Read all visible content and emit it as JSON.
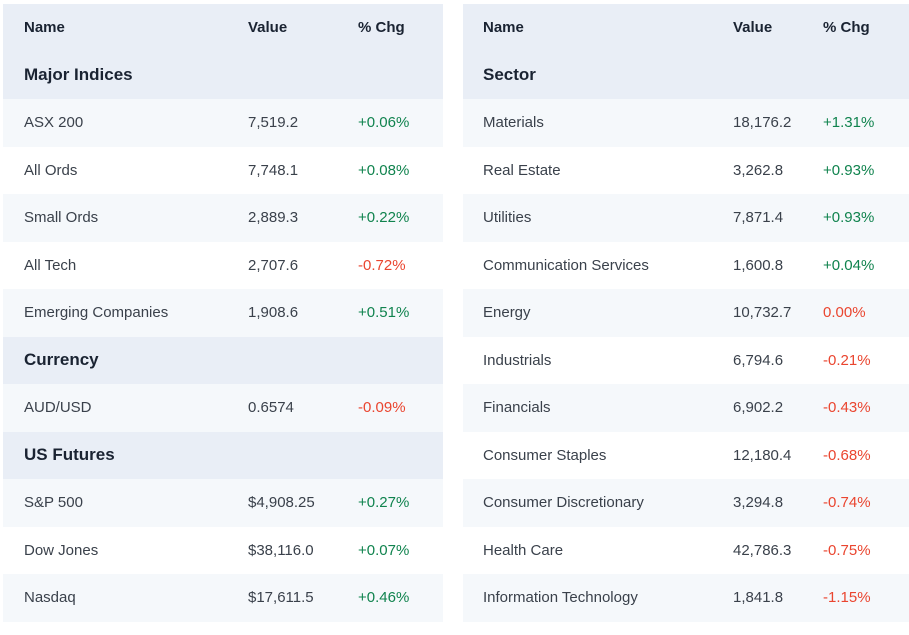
{
  "colors": {
    "positive": "#10834e",
    "negative": "#ea452f",
    "header_bg": "#e9eef6",
    "stripe_bg": "#f5f8fb"
  },
  "left_table": {
    "headers": {
      "name": "Name",
      "value": "Value",
      "chg": "% Chg"
    },
    "rows": [
      {
        "type": "section",
        "label": "Major Indices"
      },
      {
        "name": "ASX 200",
        "value": "7,519.2",
        "chg": "+0.06%",
        "trend": "up"
      },
      {
        "name": "All Ords",
        "value": "7,748.1",
        "chg": "+0.08%",
        "trend": "up"
      },
      {
        "name": "Small Ords",
        "value": "2,889.3",
        "chg": "+0.22%",
        "trend": "up"
      },
      {
        "name": "All Tech",
        "value": "2,707.6",
        "chg": "-0.72%",
        "trend": "down"
      },
      {
        "name": "Emerging Companies",
        "value": "1,908.6",
        "chg": "+0.51%",
        "trend": "up"
      },
      {
        "type": "section",
        "label": "Currency"
      },
      {
        "name": "AUD/USD",
        "value": "0.6574",
        "chg": "-0.09%",
        "trend": "down"
      },
      {
        "type": "section",
        "label": "US Futures"
      },
      {
        "name": "S&P 500",
        "value": "$4,908.25",
        "chg": "+0.27%",
        "trend": "up"
      },
      {
        "name": "Dow Jones",
        "value": "$38,116.0",
        "chg": "+0.07%",
        "trend": "up"
      },
      {
        "name": "Nasdaq",
        "value": "$17,611.5",
        "chg": "+0.46%",
        "trend": "up"
      }
    ]
  },
  "right_table": {
    "headers": {
      "name": "Name",
      "value": "Value",
      "chg": "% Chg"
    },
    "rows": [
      {
        "type": "section",
        "label": "Sector"
      },
      {
        "name": "Materials",
        "value": "18,176.2",
        "chg": "+1.31%",
        "trend": "up"
      },
      {
        "name": "Real Estate",
        "value": "3,262.8",
        "chg": "+0.93%",
        "trend": "up"
      },
      {
        "name": "Utilities",
        "value": "7,871.4",
        "chg": "+0.93%",
        "trend": "up"
      },
      {
        "name": "Communication Services",
        "value": "1,600.8",
        "chg": "+0.04%",
        "trend": "up"
      },
      {
        "name": "Energy",
        "value": "10,732.7",
        "chg": "0.00%",
        "trend": "down"
      },
      {
        "name": "Industrials",
        "value": "6,794.6",
        "chg": "-0.21%",
        "trend": "down"
      },
      {
        "name": "Financials",
        "value": "6,902.2",
        "chg": "-0.43%",
        "trend": "down"
      },
      {
        "name": "Consumer Staples",
        "value": "12,180.4",
        "chg": "-0.68%",
        "trend": "down"
      },
      {
        "name": "Consumer Discretionary",
        "value": "3,294.8",
        "chg": "-0.74%",
        "trend": "down"
      },
      {
        "name": "Health Care",
        "value": "42,786.3",
        "chg": "-0.75%",
        "trend": "down"
      },
      {
        "name": "Information Technology",
        "value": "1,841.8",
        "chg": "-1.15%",
        "trend": "down"
      }
    ]
  }
}
